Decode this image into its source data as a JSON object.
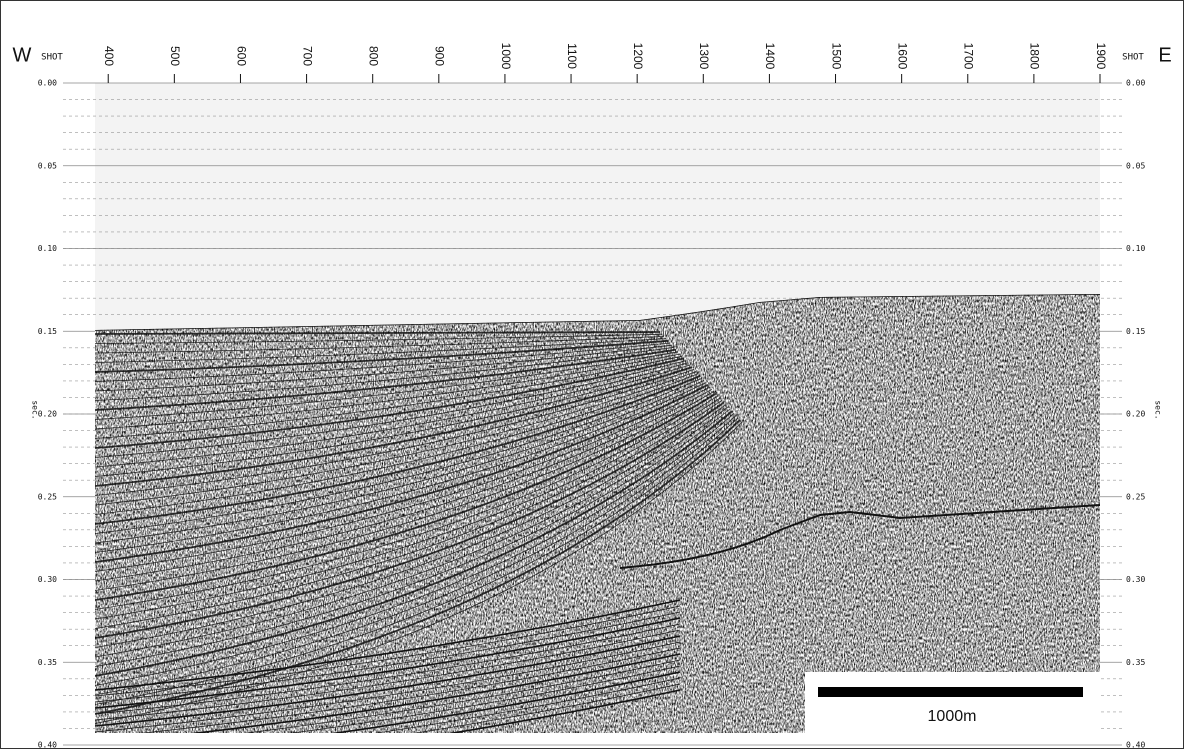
{
  "figure": {
    "west_label": "W",
    "east_label": "E",
    "shot_label_left": "SHOT",
    "shot_label_right": "SHOT",
    "time_label_left": "sec.",
    "time_label_right": "sec.",
    "xlim": [
      380,
      1900
    ],
    "xticks": [
      400,
      500,
      600,
      700,
      800,
      900,
      1000,
      1100,
      1200,
      1300,
      1400,
      1500,
      1600,
      1700,
      1800,
      1900
    ],
    "ylim": [
      0,
      0.4
    ],
    "yticks": [
      {
        "value": 0,
        "label": "0.00"
      },
      {
        "value": 0.05,
        "label": "0.05"
      },
      {
        "value": 0.1,
        "label": "0.10"
      },
      {
        "value": 0.15,
        "label": "0.15"
      },
      {
        "value": 0.2,
        "label": "0.20"
      },
      {
        "value": 0.25,
        "label": "0.25"
      },
      {
        "value": 0.3,
        "label": "0.30"
      },
      {
        "value": 0.35,
        "label": "0.35"
      },
      {
        "value": 0.4,
        "label": "0.40"
      }
    ],
    "scale_bar": "1000m"
  }
}
